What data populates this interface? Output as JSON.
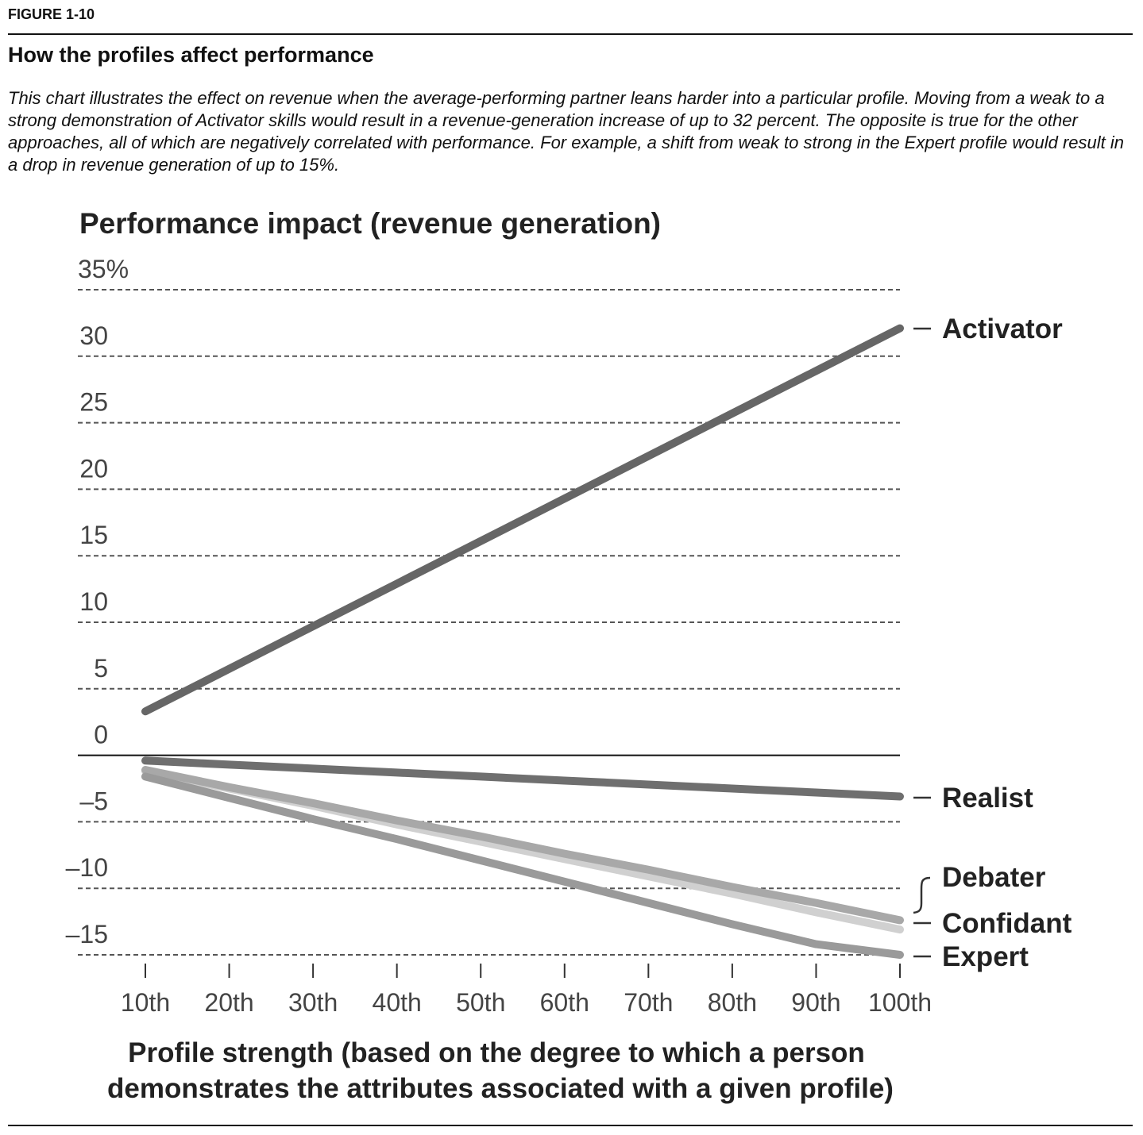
{
  "figure": {
    "label": "FIGURE 1-10",
    "title": "How the profiles affect performance",
    "caption": "This chart illustrates the effect on revenue when the average-performing partner leans harder into a particular profile. Moving from a weak to a strong demonstration of Activator skills would result in a revenue-generation increase of up to 32 percent. The opposite is true for the other approaches, all of which are negatively correlated with performance. For example, a shift from weak to strong in the Expert profile would result in a drop in revenue generation of up to 15%."
  },
  "chart_data": {
    "type": "line",
    "title": "Performance impact (revenue generation)",
    "xlabel_lines": [
      "Profile strength (based on the degree to which a person",
      "demonstrates the attributes associated with a given profile)"
    ],
    "ylabel": "",
    "x": [
      "10th",
      "20th",
      "30th",
      "40th",
      "50th",
      "60th",
      "70th",
      "80th",
      "90th",
      "100th"
    ],
    "ylim": [
      -15,
      35
    ],
    "yticks": [
      35,
      30,
      25,
      20,
      15,
      10,
      5,
      0,
      -5,
      -10,
      -15
    ],
    "ytick_labels": [
      "35%",
      "30",
      "25",
      "20",
      "15",
      "10",
      "5",
      "0",
      "–5",
      "–10",
      "–15"
    ],
    "grid": "horizontal dashed",
    "legend": "right, at line ends",
    "series": [
      {
        "name": "Activator",
        "color": "#666666",
        "values": [
          3.3,
          6.5,
          9.7,
          12.9,
          16.1,
          19.3,
          22.5,
          25.7,
          28.9,
          32.1
        ]
      },
      {
        "name": "Realist",
        "color": "#6f6f6f",
        "values": [
          -0.4,
          -0.7,
          -1.0,
          -1.3,
          -1.6,
          -1.9,
          -2.2,
          -2.5,
          -2.8,
          -3.1
        ]
      },
      {
        "name": "Debater",
        "color": "#a8a8a8",
        "values": [
          -1.1,
          -2.4,
          -3.6,
          -4.9,
          -6.1,
          -7.4,
          -8.6,
          -9.9,
          -11.1,
          -12.4
        ]
      },
      {
        "name": "Confidant",
        "color": "#d0d0d0",
        "values": [
          -1.2,
          -2.5,
          -3.8,
          -5.2,
          -6.5,
          -7.8,
          -9.1,
          -10.4,
          -11.8,
          -13.1
        ]
      },
      {
        "name": "Expert",
        "color": "#9a9a9a",
        "values": [
          -1.6,
          -3.2,
          -4.8,
          -6.3,
          -7.9,
          -9.5,
          -11.1,
          -12.7,
          -14.2,
          -15.0
        ]
      }
    ]
  }
}
